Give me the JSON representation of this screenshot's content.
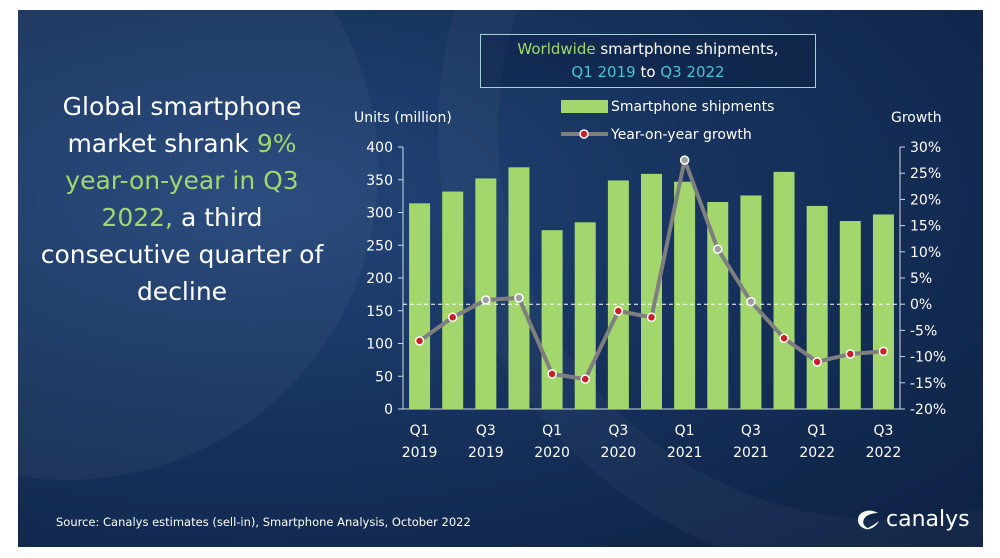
{
  "headline": {
    "part1": "Global smartphone market shrank",
    "highlight": "9% year-on-year in Q3 2022,",
    "part2": "a third consecutive quarter of decline"
  },
  "title": {
    "word1": "Worldwide",
    "word2": " smartphone shipments,",
    "word3": "Q1 2019",
    "word4": " to ",
    "word5": "Q3 2022"
  },
  "source": "Source: Canalys estimates (sell-in), Smartphone Analysis, October 2022",
  "brand": {
    "name": "canalys",
    "logo": "canalys-swirl-icon"
  },
  "colors": {
    "bar": "#a3d76e",
    "line": "#7f7f7f",
    "marker": "#c8202a",
    "text": "#ffffff",
    "zero_line": "#ffffff"
  },
  "chart_data": {
    "type": "bar",
    "ylabel": "Units (million)",
    "y2label": "Growth",
    "ylim": [
      0,
      400
    ],
    "y2lim": [
      -20,
      30
    ],
    "yticks": [
      "0",
      "50",
      "100",
      "150",
      "200",
      "250",
      "300",
      "350",
      "400"
    ],
    "y2ticks": [
      "-20%",
      "-15%",
      "-10%",
      "-5%",
      "0%",
      "5%",
      "10%",
      "15%",
      "20%",
      "25%",
      "30%"
    ],
    "categories": [
      "Q1 2019",
      "Q2 2019",
      "Q3 2019",
      "Q4 2019",
      "Q1 2020",
      "Q2 2020",
      "Q3 2020",
      "Q4 2020",
      "Q1 2021",
      "Q2 2021",
      "Q3 2021",
      "Q4 2021",
      "Q1 2022",
      "Q2 2022",
      "Q3 2022"
    ],
    "xtick_labels": [
      {
        "index": 0,
        "top": "Q1",
        "bottom": "2019"
      },
      {
        "index": 2,
        "top": "Q3",
        "bottom": "2019"
      },
      {
        "index": 4,
        "top": "Q1",
        "bottom": "2020"
      },
      {
        "index": 6,
        "top": "Q3",
        "bottom": "2020"
      },
      {
        "index": 8,
        "top": "Q1",
        "bottom": "2021"
      },
      {
        "index": 10,
        "top": "Q3",
        "bottom": "2021"
      },
      {
        "index": 12,
        "top": "Q1",
        "bottom": "2022"
      },
      {
        "index": 14,
        "top": "Q3",
        "bottom": "2022"
      }
    ],
    "series": [
      {
        "name": "Smartphone shipments",
        "type": "bar",
        "axis": "left",
        "values": [
          314,
          332,
          352,
          369,
          273,
          285,
          349,
          359,
          347,
          316,
          326,
          362,
          310,
          287,
          297
        ]
      },
      {
        "name": "Year-on-year growth",
        "type": "line",
        "axis": "right",
        "unit": "%",
        "values": [
          -7,
          -2.5,
          0.8,
          1.2,
          -13.3,
          -14.3,
          -1.3,
          -2.5,
          27.5,
          10.5,
          0.5,
          -6.5,
          -11,
          -9.5,
          -9
        ]
      }
    ],
    "marker_style": [
      "red",
      "red",
      "grey",
      "grey",
      "red",
      "red",
      "red",
      "red",
      "grey",
      "grey",
      "grey",
      "red",
      "red",
      "red",
      "red"
    ],
    "legend": "top-center",
    "zero_line": true
  }
}
